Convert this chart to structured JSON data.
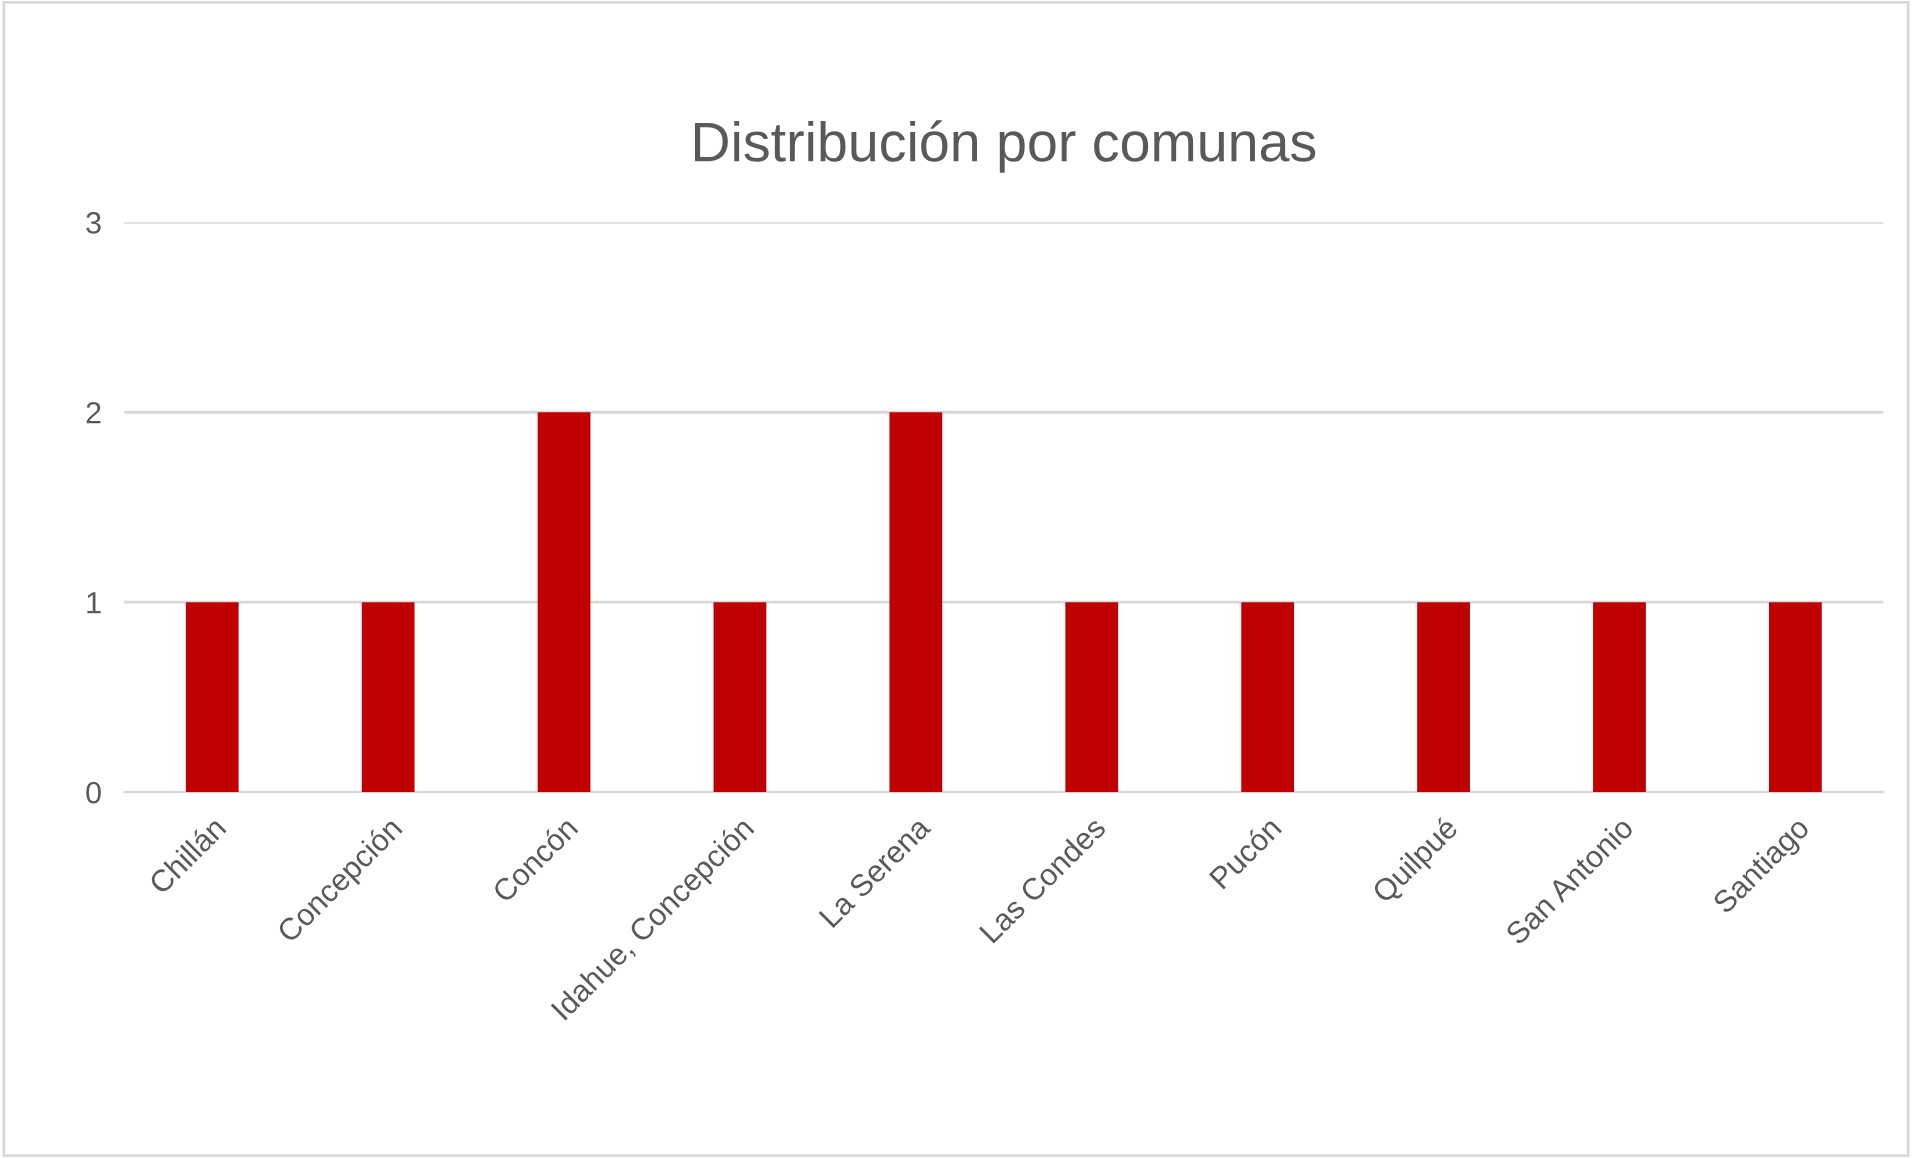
{
  "chart_data": {
    "type": "bar",
    "title": "Distribución por comunas",
    "categories": [
      "Chillán",
      "Concepción",
      "Concón",
      "Idahue, Concepción",
      "La Serena",
      "Las Condes",
      "Pucón",
      "Quilpué",
      "San Antonio",
      "Santiago"
    ],
    "values": [
      1,
      1,
      2,
      1,
      2,
      1,
      1,
      1,
      1,
      1
    ],
    "color": "#c00000",
    "ylim": [
      0,
      3
    ],
    "yticks": [
      0,
      1,
      2,
      3
    ],
    "grid": "y"
  }
}
